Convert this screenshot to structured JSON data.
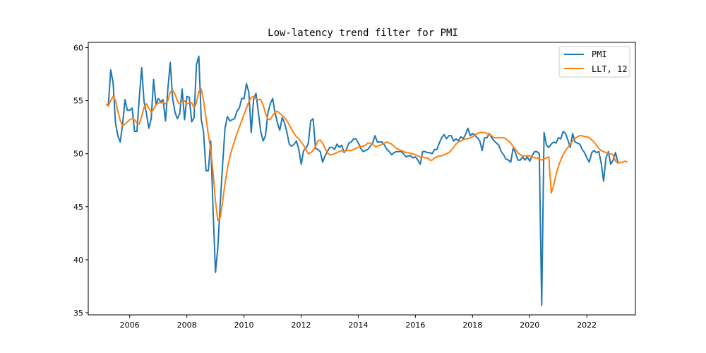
{
  "chart_data": {
    "type": "line",
    "title": "Low-latency trend filter for PMI",
    "xlabel": "",
    "ylabel": "",
    "xlim": [
      2004.55,
      2023.7
    ],
    "ylim": [
      34.8,
      60.5
    ],
    "x_ticks": [
      2006,
      2008,
      2010,
      2012,
      2014,
      2016,
      2018,
      2020,
      2022
    ],
    "y_ticks": [
      35,
      40,
      45,
      50,
      55,
      60
    ],
    "grid": false,
    "legend_position": "top-right",
    "series": [
      {
        "name": "PMI",
        "color": "#1f77b4",
        "x_start": 2005.17,
        "x_step": 0.0833333,
        "values": [
          54.7,
          54.5,
          57.9,
          56.7,
          52.9,
          51.7,
          51.1,
          52.8,
          55.1,
          54.1,
          54.1,
          54.3,
          52.1,
          52.1,
          55.3,
          58.1,
          54.9,
          53.8,
          52.4,
          53.3,
          57.0,
          54.7,
          55.2,
          54.9,
          55.1,
          53.1,
          56.1,
          58.6,
          55.2,
          53.9,
          53.3,
          53.8,
          56.1,
          53.2,
          55.4,
          55.3,
          53.0,
          53.4,
          58.4,
          59.2,
          53.3,
          52.0,
          48.4,
          48.4,
          51.2,
          44.6,
          38.8,
          41.2,
          45.3,
          49.0,
          52.4,
          53.5,
          53.1,
          53.2,
          53.3,
          54.0,
          54.3,
          55.2,
          55.2,
          56.6,
          55.8,
          52.0,
          55.1,
          55.7,
          53.9,
          52.1,
          51.2,
          51.7,
          53.8,
          54.7,
          55.2,
          53.9,
          52.9,
          52.2,
          53.4,
          52.9,
          52.0,
          50.9,
          50.7,
          50.9,
          51.2,
          50.4,
          49.0,
          50.3,
          50.5,
          51.0,
          53.1,
          53.3,
          50.5,
          50.4,
          50.2,
          49.2,
          49.8,
          50.2,
          50.6,
          50.6,
          50.4,
          50.9,
          50.6,
          50.8,
          50.1,
          50.4,
          51.0,
          51.1,
          51.4,
          51.4,
          51.0,
          50.5,
          50.2,
          50.3,
          50.4,
          50.7,
          51.0,
          51.7,
          51.1,
          51.1,
          51.1,
          50.8,
          50.4,
          50.2,
          49.9,
          50.1,
          50.2,
          50.2,
          50.2,
          50.0,
          49.7,
          49.8,
          49.8,
          49.6,
          49.7,
          49.4,
          49.0,
          50.2,
          50.2,
          50.1,
          50.1,
          50.0,
          50.4,
          50.4,
          51.0,
          51.5,
          51.8,
          51.4,
          51.7,
          51.7,
          51.2,
          51.4,
          51.2,
          51.6,
          51.4,
          51.8,
          52.4,
          51.7,
          51.9,
          51.7,
          51.5,
          51.2,
          50.3,
          51.5,
          51.5,
          51.9,
          51.5,
          51.2,
          51.0,
          50.8,
          50.2,
          49.9,
          49.5,
          49.4,
          49.2,
          50.5,
          50.1,
          49.4,
          49.4,
          49.7,
          49.4,
          49.7,
          49.3,
          49.8,
          50.2,
          50.2,
          50.0,
          35.7,
          52.0,
          50.8,
          50.6,
          50.9,
          51.1,
          51.0,
          51.5,
          51.4,
          52.1,
          51.9,
          51.3,
          50.6,
          51.9,
          51.1,
          51.0,
          50.9,
          50.4,
          50.1,
          49.6,
          49.2,
          50.1,
          50.3,
          50.1,
          50.2,
          49.1,
          47.4,
          49.6,
          50.2,
          49.0,
          49.4,
          50.1,
          49.2
        ]
      },
      {
        "name": "LLT, 12",
        "color": "#ff7f0e",
        "x_start": 2005.17,
        "x_step": 0.0833333,
        "values": [
          54.7,
          54.5,
          55.0,
          55.4,
          55.0,
          54.0,
          53.1,
          52.6,
          52.8,
          53.0,
          53.2,
          53.3,
          53.2,
          52.9,
          52.8,
          53.5,
          54.4,
          54.7,
          54.3,
          53.9,
          54.2,
          54.6,
          54.8,
          54.8,
          54.8,
          54.7,
          55.0,
          55.8,
          56.0,
          55.6,
          55.0,
          54.7,
          54.9,
          55.0,
          54.7,
          54.8,
          54.8,
          54.3,
          54.8,
          55.9,
          56.1,
          55.0,
          53.4,
          51.8,
          50.4,
          48.2,
          45.5,
          43.7,
          44.0,
          45.5,
          47.2,
          48.6,
          49.7,
          50.5,
          51.2,
          51.9,
          52.5,
          53.1,
          53.7,
          54.3,
          54.9,
          55.3,
          55.4,
          55.2,
          55.1,
          55.1,
          54.6,
          53.8,
          53.3,
          53.2,
          53.6,
          53.9,
          54.0,
          53.8,
          53.6,
          53.4,
          53.1,
          52.7,
          52.3,
          51.9,
          51.6,
          51.4,
          51.1,
          50.8,
          50.4,
          50.0,
          50.1,
          50.3,
          50.7,
          51.2,
          51.3,
          51.0,
          50.5,
          50.1,
          49.9,
          49.9,
          50.0,
          50.1,
          50.2,
          50.3,
          50.2,
          50.3,
          50.3,
          50.3,
          50.4,
          50.5,
          50.6,
          50.7,
          50.7,
          50.8,
          51.0,
          51.0,
          50.9,
          50.7,
          50.7,
          50.8,
          50.9,
          51.0,
          51.1,
          51.0,
          50.9,
          50.7,
          50.5,
          50.4,
          50.3,
          50.2,
          50.1,
          50.1,
          50.0,
          50.0,
          49.9,
          49.8,
          49.7,
          49.7,
          49.6,
          49.6,
          49.4,
          49.4,
          49.6,
          49.7,
          49.8,
          49.8,
          49.9,
          50.0,
          50.1,
          50.3,
          50.6,
          50.9,
          51.1,
          51.2,
          51.3,
          51.4,
          51.4,
          51.5,
          51.6,
          51.8,
          51.9,
          52.0,
          52.0,
          52.0,
          51.9,
          51.8,
          51.7,
          51.5,
          51.5,
          51.5,
          51.5,
          51.5,
          51.4,
          51.2,
          51.0,
          50.7,
          50.4,
          50.1,
          49.9,
          49.8,
          49.8,
          49.8,
          49.8,
          49.7,
          49.6,
          49.6,
          49.5,
          49.4,
          49.5,
          49.6,
          49.7,
          46.3,
          47.0,
          48.0,
          48.8,
          49.4,
          49.9,
          50.3,
          50.6,
          50.9,
          51.2,
          51.4,
          51.6,
          51.7,
          51.7,
          51.6,
          51.6,
          51.5,
          51.3,
          51.1,
          50.8,
          50.5,
          50.3,
          50.2,
          50.1,
          50.0,
          50.0,
          49.9,
          49.3,
          49.1,
          49.2,
          49.2,
          49.3,
          49.2
        ]
      }
    ]
  }
}
